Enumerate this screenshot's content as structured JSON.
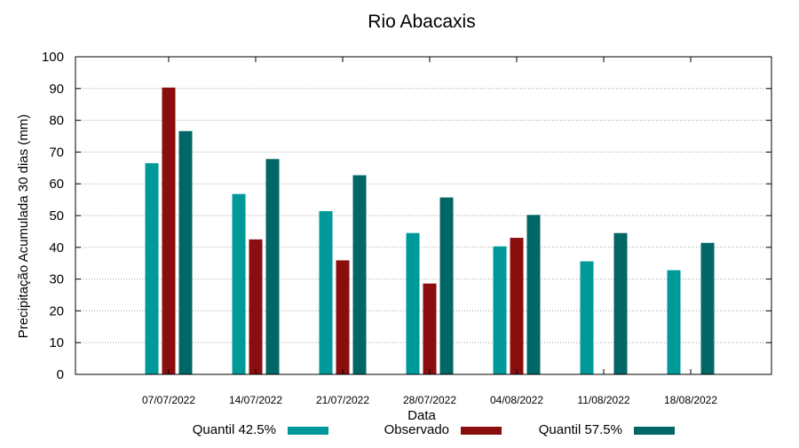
{
  "chart_data": {
    "type": "bar",
    "title": "Rio Abacaxis",
    "xlabel": "Data",
    "ylabel": "Precipitação Acumulada 30 dias (mm)",
    "ylim": [
      0,
      100
    ],
    "yticks": [
      0,
      10,
      20,
      30,
      40,
      50,
      60,
      70,
      80,
      90,
      100
    ],
    "grid": true,
    "legend_position": "bottom",
    "categories": [
      "07/07/2022",
      "14/07/2022",
      "21/07/2022",
      "28/07/2022",
      "04/08/2022",
      "11/08/2022",
      "18/08/2022"
    ],
    "series": [
      {
        "name": "Quantil 42.5%",
        "color": "#009999",
        "values": [
          66.5,
          56.8,
          51.4,
          44.5,
          40.3,
          35.6,
          32.8
        ]
      },
      {
        "name": "Observado",
        "color": "#8b0e0e",
        "values": [
          90.3,
          42.5,
          35.9,
          28.6,
          43.0,
          null,
          null
        ]
      },
      {
        "name": "Quantil 57.5%",
        "color": "#006666",
        "values": [
          76.6,
          67.8,
          62.7,
          55.7,
          50.2,
          44.5,
          41.4
        ]
      }
    ]
  }
}
